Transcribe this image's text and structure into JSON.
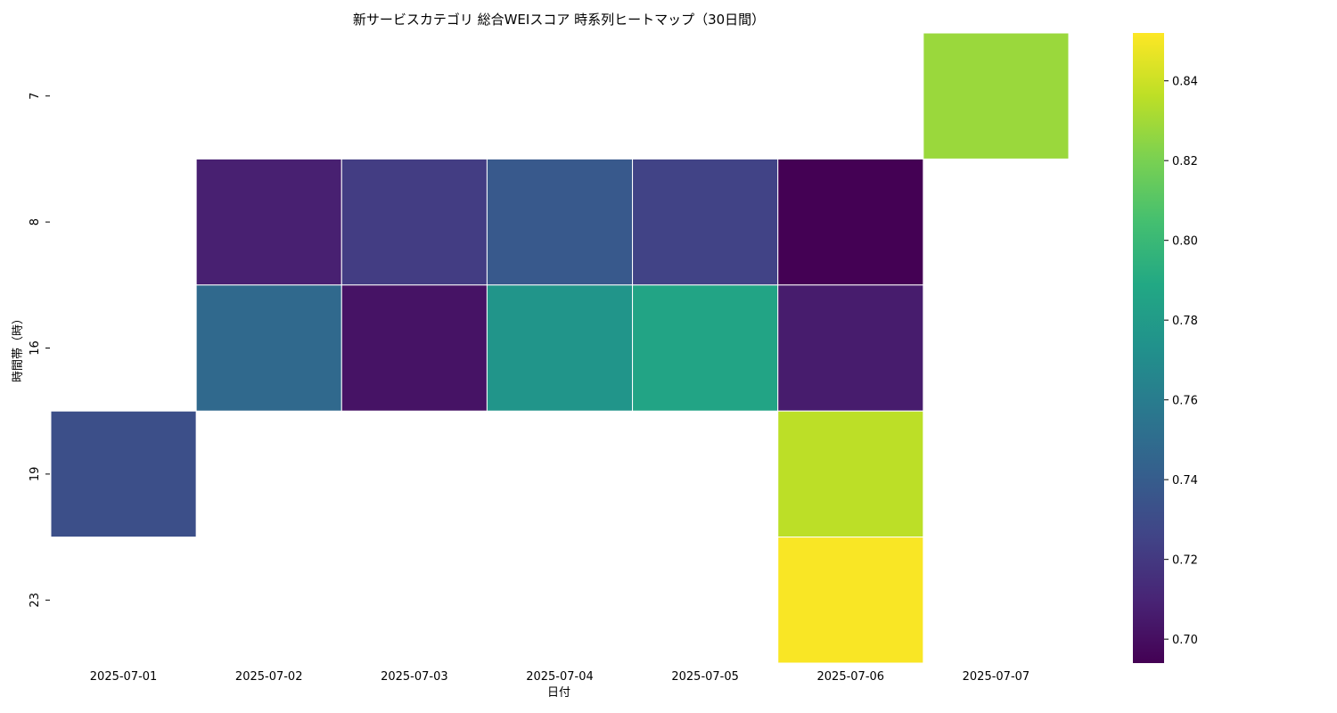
{
  "chart_data": {
    "type": "heatmap",
    "title": "新サービスカテゴリ 総合WEIスコア 時系列ヒートマップ（30日間）",
    "xlabel": "日付",
    "ylabel": "時間帯（時）",
    "x_categories": [
      "2025-07-01",
      "2025-07-02",
      "2025-07-03",
      "2025-07-04",
      "2025-07-05",
      "2025-07-06",
      "2025-07-07"
    ],
    "y_categories": [
      "7",
      "8",
      "16",
      "19",
      "23"
    ],
    "values": [
      [
        null,
        null,
        null,
        null,
        null,
        null,
        0.828
      ],
      [
        null,
        0.708,
        0.722,
        0.738,
        0.725,
        0.694,
        null
      ],
      [
        null,
        0.748,
        0.702,
        0.776,
        0.786,
        0.706,
        null
      ],
      [
        0.732,
        null,
        null,
        null,
        null,
        0.836,
        null
      ],
      [
        null,
        null,
        null,
        null,
        null,
        0.851,
        null
      ]
    ],
    "colormap": "viridis",
    "vmin": 0.694,
    "vmax": 0.852,
    "colorbar_ticks": [
      "0.70",
      "0.72",
      "0.74",
      "0.76",
      "0.78",
      "0.80",
      "0.82",
      "0.84"
    ],
    "missing_color": "#ffffff",
    "cell_border_color": "#ffffff"
  }
}
